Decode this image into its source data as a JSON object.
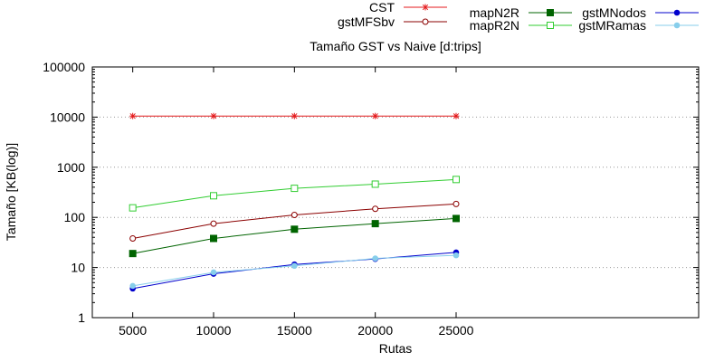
{
  "chart_data": {
    "type": "line",
    "title": "Tamaño GST vs Naive [d:trips]",
    "xlabel": "Rutas",
    "ylabel": "Tamaño [KB(log)]",
    "y_scale": "log",
    "xlim": [
      2500,
      40000
    ],
    "ylim": [
      1,
      100000
    ],
    "grid": true,
    "legend_placement": "top",
    "x": [
      5000,
      10000,
      15000,
      20000,
      25000
    ],
    "x_ticks": [
      "5000",
      "10000",
      "15000",
      "20000",
      "25000"
    ],
    "y_ticks": [
      {
        "value": 1,
        "label": "1"
      },
      {
        "value": 10,
        "label": "10"
      },
      {
        "value": 100,
        "label": "100"
      },
      {
        "value": 1000,
        "label": "1000"
      },
      {
        "value": 10000,
        "label": "10000"
      },
      {
        "value": 100000,
        "label": "100000"
      }
    ],
    "series": [
      {
        "name": "CST",
        "color": "#e41a1c",
        "marker": "star",
        "values": [
          10500,
          10500,
          10500,
          10500,
          10500
        ]
      },
      {
        "name": "gstMFSbv",
        "color": "#8b0000",
        "marker": "open-circle",
        "values": [
          38,
          75,
          112,
          148,
          185
        ]
      },
      {
        "name": "mapN2R",
        "color": "#006400",
        "marker": "filled-square",
        "values": [
          19,
          38,
          58,
          75,
          95
        ]
      },
      {
        "name": "mapR2N",
        "color": "#32cd32",
        "marker": "open-square",
        "values": [
          155,
          270,
          380,
          460,
          570
        ]
      },
      {
        "name": "gstMNodos",
        "color": "#0000cd",
        "marker": "filled-circle",
        "values": [
          3.8,
          7.5,
          11.5,
          14.8,
          20
        ]
      },
      {
        "name": "gstMRamas",
        "color": "#87ceeb",
        "marker": "filled-circle",
        "values": [
          4.3,
          8,
          10.8,
          15.2,
          17.5
        ]
      }
    ]
  }
}
